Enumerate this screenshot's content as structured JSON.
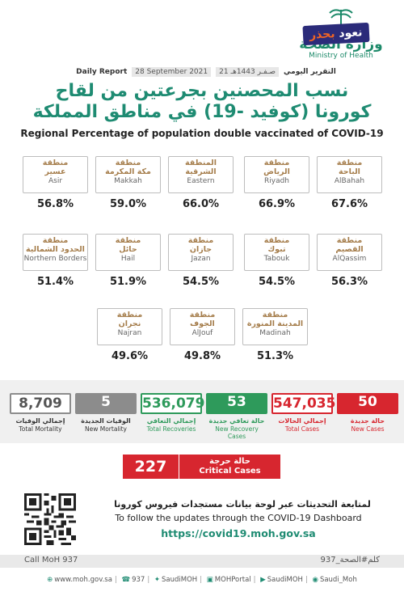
{
  "header": {
    "logo_ar": "وزارة الصحة",
    "logo_en": "Ministry of Health",
    "badge_part1": "نعود",
    "badge_part2": "بحذر"
  },
  "report": {
    "label_en": "Daily Report",
    "date_en": "28 September 2021",
    "date_ar": "21 صـفـر 1443هـ",
    "label_ar": "التقرير اليومي"
  },
  "title": {
    "ar_line1": "نسب المحصنين بجرعتين من لقاح",
    "ar_line2": "كورونا (كوفيد -19) في مناطق المملكة",
    "en": "Regional Percentage of population double vaccinated of COVID-19"
  },
  "regions": [
    {
      "ar1": "منطقة",
      "ar2": "عسير",
      "en": "Asir",
      "pct": "56.8%"
    },
    {
      "ar1": "منطقة",
      "ar2": "مكة المكرمة",
      "en": "Makkah",
      "pct": "59.0%"
    },
    {
      "ar1": "المنطقة",
      "ar2": "الشرقية",
      "en": "Eastern",
      "pct": "66.0%"
    },
    {
      "ar1": "منطقة",
      "ar2": "الرياض",
      "en": "Riyadh",
      "pct": "66.9%"
    },
    {
      "ar1": "منطقة",
      "ar2": "الباحة",
      "en": "AlBahah",
      "pct": "67.6%"
    },
    {
      "ar1": "منطقة",
      "ar2": "الحدود الشمالية",
      "en": "Northern Borders",
      "pct": "51.4%"
    },
    {
      "ar1": "منطقة",
      "ar2": "حائل",
      "en": "Hail",
      "pct": "51.9%"
    },
    {
      "ar1": "منطقة",
      "ar2": "جازان",
      "en": "Jazan",
      "pct": "54.5%"
    },
    {
      "ar1": "منطقة",
      "ar2": "تبوك",
      "en": "Tabouk",
      "pct": "54.5%"
    },
    {
      "ar1": "منطقة",
      "ar2": "القصيم",
      "en": "AlQassim",
      "pct": "56.3%"
    },
    {
      "ar1": "منطقة",
      "ar2": "نجران",
      "en": "Najran",
      "pct": "49.6%"
    },
    {
      "ar1": "منطقة",
      "ar2": "الجوف",
      "en": "AlJouf",
      "pct": "49.8%"
    },
    {
      "ar1": "منطقة",
      "ar2": "المدينة المنورة",
      "en": "Madinah",
      "pct": "51.3%"
    }
  ],
  "stats": [
    {
      "value": "8,709",
      "ar": "إجمالي الوفيات",
      "en": "Total Mortality"
    },
    {
      "value": "5",
      "ar": "الوفيات الجديدة",
      "en": "New Mortality"
    },
    {
      "value": "536,079",
      "ar": "إجمالي التعافي",
      "en": "Total Recoveries"
    },
    {
      "value": "53",
      "ar": "حالة تعافي جديدة",
      "en": "New Recovery Cases"
    },
    {
      "value": "547,035",
      "ar": "إجمالي الحالات",
      "en": "Total Cases"
    },
    {
      "value": "50",
      "ar": "حالة جديدة",
      "en": "New Cases"
    }
  ],
  "critical": {
    "value": "227",
    "ar": "حالة حرجة",
    "en": "Critical Cases"
  },
  "dashboard": {
    "ar": "لمتابعة التحديثات عبر لوحة بيانات مستجدات فيروس كورونا",
    "en": "To follow the updates through the COVID-19 Dashboard",
    "url": "https://covid19.moh.gov.sa"
  },
  "footer": {
    "call": "Call MoH 937",
    "hashtag": "كلم#الصحة_937"
  },
  "links": [
    "www.moh.gov.sa",
    "937",
    "SaudiMOH",
    "MOHPortal",
    "SaudiMOH",
    "Saudi_Moh"
  ],
  "colors": {
    "green": "#1e8b72",
    "red": "#d7262f",
    "gray": "#8c8c8c",
    "stat_green": "#2e9a5b",
    "tan": "#a57d4b"
  }
}
